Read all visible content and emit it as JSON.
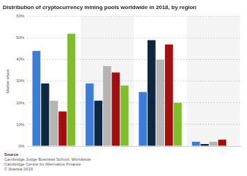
{
  "chart_data": {
    "type": "bar",
    "title": "Distribution of cryptocurrency mining pools worldwide in 2018, by region",
    "y_label": "Market share",
    "categories": [
      null,
      null,
      null,
      null
    ],
    "series": [
      {
        "color": "#3b7dd8",
        "values": [
          44,
          29,
          25,
          2
        ]
      },
      {
        "color": "#0e2841",
        "values": [
          29,
          21,
          49,
          1
        ]
      },
      {
        "color": "#b4b4b4",
        "values": [
          21,
          37,
          40,
          2
        ]
      },
      {
        "color": "#a30f0f",
        "values": [
          16,
          34,
          47,
          3
        ]
      },
      {
        "color": "#80bd2a",
        "values": [
          52,
          28,
          20,
          null
        ]
      }
    ],
    "ylim": [
      0,
      60
    ],
    "yticks": [
      {
        "value": 0,
        "label": "0%"
      },
      {
        "value": 10,
        "label": "10%"
      },
      {
        "value": 20,
        "label": "20%"
      },
      {
        "value": 30,
        "label": "30%"
      },
      {
        "value": 40,
        "label": "40%"
      },
      {
        "value": 50,
        "label": "50%"
      },
      {
        "value": 60,
        "label": "60%"
      }
    ],
    "grid": true,
    "annotations": [
      "Source",
      "Cambridge Judge Business School; Worldwide",
      "Cambridge Centre for Alternative Finance",
      "© Statista 2019"
    ]
  }
}
